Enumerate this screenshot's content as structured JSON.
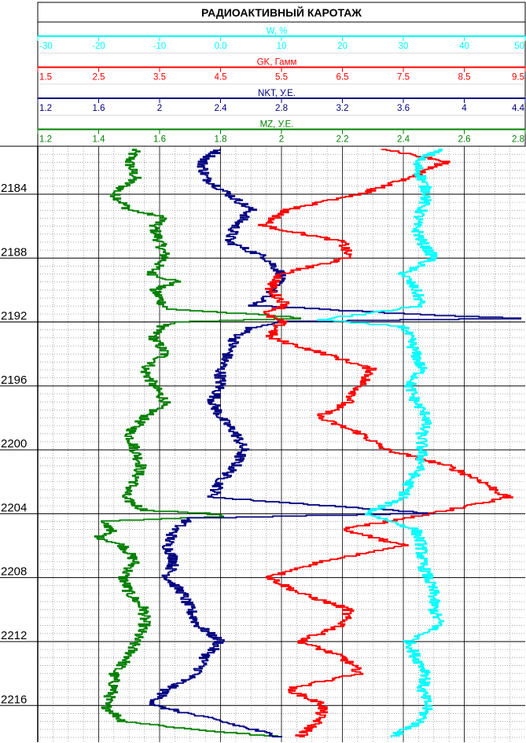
{
  "chart_data": {
    "type": "line",
    "title": "РАДИОАКТИВНЫЙ   КАРОТАЖ",
    "orientation": "depth-vertical",
    "depth_axis": {
      "range": [
        2181.0,
        2218.3
      ],
      "tick_labels": [
        "2184",
        "2188",
        "2192",
        "2196",
        "2200",
        "2204",
        "2208",
        "2212",
        "2216"
      ],
      "ticks": [
        2184,
        2188,
        2192,
        2196,
        2200,
        2204,
        2208,
        2212,
        2216
      ],
      "minor_step": 0.5
    },
    "grid": true,
    "scales": [
      {
        "id": "w",
        "label": "W, %",
        "color": "#00ffff",
        "range": [
          -30,
          50
        ],
        "tick_labels": [
          "-30",
          "-20",
          "-10",
          "0.0",
          "10",
          "20",
          "30",
          "40",
          "50"
        ]
      },
      {
        "id": "gk",
        "label": "GK, Гамм",
        "color": "#ff0000",
        "range": [
          1.5,
          9.5
        ],
        "tick_labels": [
          "1.5",
          "2.5",
          "3.5",
          "4.5",
          "5.5",
          "6.5",
          "7.5",
          "8.5",
          "9.5"
        ]
      },
      {
        "id": "nkt",
        "label": "NKT, У.Е.",
        "color": "#000080",
        "range": [
          1.2,
          4.4
        ],
        "tick_labels": [
          "1.2",
          "1.6",
          "2",
          "2.4",
          "2.8",
          "3.2",
          "3.6",
          "4",
          "4.4"
        ]
      },
      {
        "id": "mz",
        "label": "MZ, У.Е.",
        "color": "#008000",
        "range": [
          1.2,
          2.8
        ],
        "tick_labels": [
          "1.2",
          "1.4",
          "1.6",
          "1.8",
          "2",
          "2.2",
          "2.4",
          "2.6",
          "2.8"
        ]
      }
    ],
    "series": [
      {
        "name": "MZ, У.Е.",
        "scale": "mz",
        "points": [
          [
            2181.2,
            1.52
          ],
          [
            2182.0,
            1.5
          ],
          [
            2183.0,
            1.52
          ],
          [
            2184.0,
            1.45
          ],
          [
            2185.0,
            1.5
          ],
          [
            2185.5,
            1.62
          ],
          [
            2186.0,
            1.58
          ],
          [
            2187.0,
            1.6
          ],
          [
            2188.0,
            1.62
          ],
          [
            2189.0,
            1.57
          ],
          [
            2189.5,
            1.66
          ],
          [
            2190.0,
            1.58
          ],
          [
            2190.5,
            1.6
          ],
          [
            2191.2,
            1.62
          ],
          [
            2191.6,
            1.95
          ],
          [
            2191.8,
            2.08
          ],
          [
            2192.0,
            1.68
          ],
          [
            2192.3,
            1.6
          ],
          [
            2193.0,
            1.58
          ],
          [
            2194.0,
            1.62
          ],
          [
            2195.0,
            1.55
          ],
          [
            2196.0,
            1.58
          ],
          [
            2197.0,
            1.62
          ],
          [
            2198.0,
            1.55
          ],
          [
            2199.0,
            1.5
          ],
          [
            2200.0,
            1.52
          ],
          [
            2201.0,
            1.54
          ],
          [
            2202.0,
            1.52
          ],
          [
            2203.0,
            1.48
          ],
          [
            2203.8,
            1.55
          ],
          [
            2204.0,
            1.75
          ],
          [
            2204.2,
            1.82
          ],
          [
            2204.5,
            1.4
          ],
          [
            2205.0,
            1.45
          ],
          [
            2205.5,
            1.4
          ],
          [
            2206.0,
            1.48
          ],
          [
            2207.0,
            1.52
          ],
          [
            2208.0,
            1.48
          ],
          [
            2209.0,
            1.5
          ],
          [
            2210.0,
            1.55
          ],
          [
            2211.0,
            1.55
          ],
          [
            2212.0,
            1.52
          ],
          [
            2213.0,
            1.5
          ],
          [
            2214.0,
            1.45
          ],
          [
            2215.0,
            1.45
          ],
          [
            2216.0,
            1.42
          ],
          [
            2217.0,
            1.48
          ],
          [
            2217.5,
            1.7
          ],
          [
            2218.0,
            2.0
          ]
        ]
      },
      {
        "name": "NKT, У.Е.",
        "scale": "nkt",
        "points": [
          [
            2181.2,
            2.4
          ],
          [
            2182.0,
            2.28
          ],
          [
            2183.0,
            2.3
          ],
          [
            2184.0,
            2.45
          ],
          [
            2185.0,
            2.6
          ],
          [
            2186.0,
            2.5
          ],
          [
            2187.0,
            2.45
          ],
          [
            2188.0,
            2.7
          ],
          [
            2189.0,
            2.8
          ],
          [
            2190.0,
            2.75
          ],
          [
            2191.0,
            2.62
          ],
          [
            2191.6,
            3.8
          ],
          [
            2191.8,
            4.4
          ],
          [
            2192.0,
            2.8
          ],
          [
            2192.4,
            2.6
          ],
          [
            2193.0,
            2.5
          ],
          [
            2194.0,
            2.45
          ],
          [
            2195.0,
            2.4
          ],
          [
            2196.0,
            2.4
          ],
          [
            2197.0,
            2.35
          ],
          [
            2198.0,
            2.4
          ],
          [
            2199.0,
            2.5
          ],
          [
            2200.0,
            2.55
          ],
          [
            2201.0,
            2.5
          ],
          [
            2202.0,
            2.4
          ],
          [
            2203.0,
            2.35
          ],
          [
            2204.0,
            3.8
          ],
          [
            2204.3,
            2.2
          ],
          [
            2205.0,
            2.1
          ],
          [
            2206.0,
            2.05
          ],
          [
            2207.0,
            2.1
          ],
          [
            2208.0,
            2.05
          ],
          [
            2209.0,
            2.15
          ],
          [
            2210.0,
            2.2
          ],
          [
            2211.0,
            2.25
          ],
          [
            2212.0,
            2.4
          ],
          [
            2213.0,
            2.3
          ],
          [
            2214.0,
            2.25
          ],
          [
            2215.0,
            2.05
          ],
          [
            2216.0,
            1.95
          ],
          [
            2217.0,
            2.4
          ],
          [
            2218.0,
            2.8
          ]
        ]
      },
      {
        "name": "GK, Гамм",
        "scale": "gk",
        "points": [
          [
            2181.2,
            7.2
          ],
          [
            2182.0,
            8.2
          ],
          [
            2183.0,
            7.6
          ],
          [
            2184.0,
            6.8
          ],
          [
            2185.0,
            5.6
          ],
          [
            2186.0,
            5.2
          ],
          [
            2187.0,
            6.5
          ],
          [
            2188.0,
            6.6
          ],
          [
            2189.0,
            5.5
          ],
          [
            2190.0,
            5.3
          ],
          [
            2191.0,
            5.6
          ],
          [
            2191.5,
            5.2
          ],
          [
            2192.0,
            5.5
          ],
          [
            2193.0,
            5.3
          ],
          [
            2194.0,
            6.2
          ],
          [
            2195.0,
            7.0
          ],
          [
            2196.0,
            6.8
          ],
          [
            2197.0,
            6.6
          ],
          [
            2198.0,
            6.1
          ],
          [
            2199.0,
            6.8
          ],
          [
            2200.0,
            7.2
          ],
          [
            2201.0,
            8.2
          ],
          [
            2202.0,
            8.8
          ],
          [
            2203.0,
            9.2
          ],
          [
            2204.0,
            8.0
          ],
          [
            2205.0,
            6.5
          ],
          [
            2206.0,
            7.5
          ],
          [
            2207.0,
            6.2
          ],
          [
            2208.0,
            5.3
          ],
          [
            2209.0,
            5.8
          ],
          [
            2210.0,
            6.6
          ],
          [
            2211.0,
            6.5
          ],
          [
            2212.0,
            5.8
          ],
          [
            2213.0,
            6.5
          ],
          [
            2214.0,
            6.8
          ],
          [
            2215.0,
            5.6
          ],
          [
            2216.0,
            6.2
          ],
          [
            2217.0,
            6.1
          ],
          [
            2218.0,
            5.8
          ]
        ]
      },
      {
        "name": "W, %",
        "scale": "w",
        "points": [
          [
            2181.2,
            36
          ],
          [
            2182.0,
            32
          ],
          [
            2183.0,
            33
          ],
          [
            2184.0,
            34
          ],
          [
            2185.0,
            33
          ],
          [
            2186.0,
            32
          ],
          [
            2187.0,
            33
          ],
          [
            2188.0,
            35
          ],
          [
            2189.0,
            30
          ],
          [
            2190.0,
            32
          ],
          [
            2191.0,
            33
          ],
          [
            2191.6,
            22
          ],
          [
            2191.9,
            16
          ],
          [
            2192.3,
            30
          ],
          [
            2193.0,
            31
          ],
          [
            2194.0,
            32
          ],
          [
            2195.0,
            33
          ],
          [
            2196.0,
            31
          ],
          [
            2197.0,
            32
          ],
          [
            2198.0,
            34
          ],
          [
            2199.0,
            33
          ],
          [
            2200.0,
            33
          ],
          [
            2201.0,
            33
          ],
          [
            2202.0,
            31
          ],
          [
            2203.0,
            30
          ],
          [
            2204.0,
            24
          ],
          [
            2205.0,
            32
          ],
          [
            2206.0,
            33
          ],
          [
            2207.0,
            33
          ],
          [
            2208.0,
            34
          ],
          [
            2209.0,
            35
          ],
          [
            2210.0,
            35
          ],
          [
            2211.0,
            36
          ],
          [
            2212.0,
            31
          ],
          [
            2213.0,
            32
          ],
          [
            2214.0,
            34
          ],
          [
            2215.0,
            33
          ],
          [
            2216.0,
            34
          ],
          [
            2217.0,
            33
          ],
          [
            2218.0,
            28
          ]
        ]
      }
    ]
  }
}
